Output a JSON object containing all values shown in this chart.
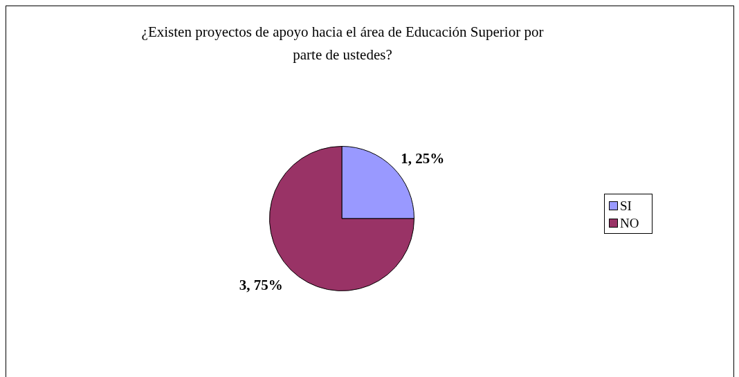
{
  "chart_data": {
    "type": "pie",
    "title": "¿Existen proyectos de apoyo hacia el área de Educación Superior por parte de ustedes?",
    "categories": [
      "SI",
      "NO"
    ],
    "values": [
      1,
      3
    ],
    "colors": [
      "#9999ff",
      "#993366"
    ],
    "value_labels": [
      "1, 25%",
      "3, 75%"
    ],
    "legend": "right"
  }
}
